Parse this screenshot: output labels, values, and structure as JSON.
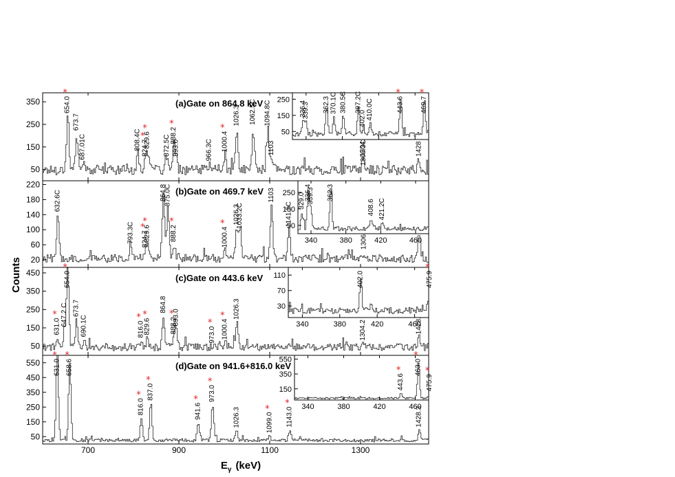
{
  "figure": {
    "ylabel": "Counts",
    "xlabel": "E",
    "xlabel_sub": "γ",
    "xlabel_unit": "(keV)",
    "star_symbol": "*",
    "star_color": "#e02020",
    "line_color": "#222222"
  },
  "chart_data": [
    {
      "type": "line",
      "panel": "a",
      "title": "(a)Gate on 864.8 keV",
      "xlim": [
        600,
        1450
      ],
      "ylim": [
        0,
        390
      ],
      "yticks": [
        50,
        150,
        250,
        350
      ],
      "xticks": [
        700,
        900,
        1100,
        1300
      ],
      "xtick_labels": [],
      "baseline": 48,
      "peaks": [
        {
          "x": 654.0,
          "y": 300,
          "label": "654.0",
          "star": true
        },
        {
          "x": 673.7,
          "y": 210,
          "label": "673.7",
          "star": false
        },
        {
          "x": 687.0,
          "y": 80,
          "label": "687.01C",
          "star": false
        },
        {
          "x": 808.4,
          "y": 120,
          "label": "808.4C",
          "star": false
        },
        {
          "x": 824.7,
          "y": 95,
          "label": "824.7",
          "star": true
        },
        {
          "x": 829.6,
          "y": 130,
          "label": "829.6",
          "star": true
        },
        {
          "x": 872.5,
          "y": 95,
          "label": "872.5C",
          "star": false
        },
        {
          "x": 888.2,
          "y": 150,
          "label": "888.2",
          "star": true
        },
        {
          "x": 893.0,
          "y": 95,
          "label": "893.0",
          "star": false
        },
        {
          "x": 966.3,
          "y": 75,
          "label": "966.3C",
          "star": false
        },
        {
          "x": 1000.4,
          "y": 115,
          "label": "1000.4",
          "star": true
        },
        {
          "x": 1026.3,
          "y": 230,
          "label": "1026.3",
          "star": false
        },
        {
          "x": 1062.5,
          "y": 235,
          "label": "1062.5C",
          "star": false
        },
        {
          "x": 1094.8,
          "y": 230,
          "label": "1094.8C",
          "star": false
        },
        {
          "x": 1103.0,
          "y": 100,
          "label": "1103",
          "star": false
        },
        {
          "x": 1304.2,
          "y": 95,
          "label": "1304.2",
          "star": false
        },
        {
          "x": 1306.3,
          "y": 55,
          "label": "1306.3C",
          "star": false
        },
        {
          "x": 1428.0,
          "y": 95,
          "label": "1428",
          "star": false
        }
      ],
      "inset": {
        "xlim": [
          325,
          475
        ],
        "ylim": [
          0,
          290
        ],
        "yticks": [
          50,
          150,
          250
        ],
        "xticks": [
          340,
          380,
          420,
          460
        ],
        "baseline": 35,
        "peaks": [
          {
            "x": 336.4,
            "y": 120,
            "label": "336.4",
            "star": false
          },
          {
            "x": 339.3,
            "y": 110,
            "label": "339.3",
            "star": false
          },
          {
            "x": 362.3,
            "y": 220,
            "label": "362.3",
            "star": false
          },
          {
            "x": 370.1,
            "y": 140,
            "label": "370.1C",
            "star": false
          },
          {
            "x": 380.5,
            "y": 160,
            "label": "380.5C",
            "star": false
          },
          {
            "x": 397.2,
            "y": 190,
            "label": "397.2C",
            "star": false
          },
          {
            "x": 402.0,
            "y": 60,
            "label": "402.0",
            "star": false
          },
          {
            "x": 410.0,
            "y": 100,
            "label": "410.0C",
            "star": false
          },
          {
            "x": 443.6,
            "y": 260,
            "label": "443.6",
            "star": true
          },
          {
            "x": 469.7,
            "y": 260,
            "label": "469.7",
            "star": true
          }
        ]
      }
    },
    {
      "type": "line",
      "panel": "b",
      "title": "(b)Gate on 469.7 keV",
      "xlim": [
        600,
        1450
      ],
      "ylim": [
        0,
        230
      ],
      "yticks": [
        20,
        60,
        100,
        140,
        180,
        220
      ],
      "xticks": [
        700,
        900,
        1100,
        1300
      ],
      "xtick_labels": [],
      "baseline": 24,
      "peaks": [
        {
          "x": 632.6,
          "y": 140,
          "label": "632.6C",
          "star": false
        },
        {
          "x": 793.3,
          "y": 55,
          "label": "793.3C",
          "star": false
        },
        {
          "x": 824.7,
          "y": 45,
          "label": "824.7",
          "star": true
        },
        {
          "x": 829.6,
          "y": 60,
          "label": "829.6",
          "star": true
        },
        {
          "x": 864.8,
          "y": 200,
          "label": "864.8",
          "star": false
        },
        {
          "x": 875.0,
          "y": 155,
          "label": "875.0C",
          "star": false
        },
        {
          "x": 888.2,
          "y": 60,
          "label": "888.2",
          "star": true
        },
        {
          "x": 1000.4,
          "y": 45,
          "label": "1000.4",
          "star": true
        },
        {
          "x": 1026.3,
          "y": 105,
          "label": "1026.3",
          "star": false
        },
        {
          "x": 1033.2,
          "y": 95,
          "label": "1033.2C",
          "star": false
        },
        {
          "x": 1103.0,
          "y": 165,
          "label": "1103",
          "star": false
        },
        {
          "x": 1141.5,
          "y": 100,
          "label": "1141.5C",
          "star": false
        },
        {
          "x": 1306.8,
          "y": 40,
          "label": "1306.8C",
          "star": false
        },
        {
          "x": 1428.0,
          "y": 95,
          "label": "1428",
          "star": false
        }
      ],
      "inset": {
        "xlim": [
          325,
          475
        ],
        "ylim": [
          0,
          320
        ],
        "yticks": [
          50,
          150,
          250
        ],
        "xticks": [
          340,
          380,
          420,
          460
        ],
        "xtick_labels": [
          340,
          380,
          420,
          460
        ],
        "baseline": 30,
        "peaks": [
          {
            "x": 329.0,
            "y": 130,
            "label": "329.0",
            "star": false
          },
          {
            "x": 336.4,
            "y": 250,
            "label": "336.4",
            "star": false
          },
          {
            "x": 339.3,
            "y": 160,
            "label": "339.3",
            "star": false
          },
          {
            "x": 362.3,
            "y": 280,
            "label": "362.3",
            "star": false
          },
          {
            "x": 408.6,
            "y": 90,
            "label": "408.6",
            "star": false
          },
          {
            "x": 421.2,
            "y": 65,
            "label": "421.2C",
            "star": false
          }
        ]
      }
    },
    {
      "type": "line",
      "panel": "c",
      "title": "(c)Gate on 443.6 keV",
      "xlim": [
        600,
        1450
      ],
      "ylim": [
        0,
        480
      ],
      "yticks": [
        50,
        150,
        250,
        350,
        450
      ],
      "xticks": [
        700,
        900,
        1100,
        1300
      ],
      "xtick_labels": [],
      "baseline": 45,
      "peaks": [
        {
          "x": 631.0,
          "y": 95,
          "label": "631.0",
          "star": true
        },
        {
          "x": 647.2,
          "y": 140,
          "label": "647.2 C",
          "star": false
        },
        {
          "x": 654.0,
          "y": 470,
          "label": "654.0",
          "star": true
        },
        {
          "x": 673.7,
          "y": 195,
          "label": "673.7",
          "star": false
        },
        {
          "x": 690.1,
          "y": 85,
          "label": "690.1C",
          "star": false
        },
        {
          "x": 816.0,
          "y": 80,
          "label": "816.0",
          "star": true
        },
        {
          "x": 829.6,
          "y": 95,
          "label": "829.6",
          "star": true
        },
        {
          "x": 864.8,
          "y": 215,
          "label": "864.8",
          "star": false
        },
        {
          "x": 888.2,
          "y": 100,
          "label": "888.2",
          "star": true
        },
        {
          "x": 893.0,
          "y": 145,
          "label": "893.0",
          "star": false
        },
        {
          "x": 973.0,
          "y": 50,
          "label": "973.0",
          "star": true
        },
        {
          "x": 1000.4,
          "y": 70,
          "label": "1000.4",
          "star": true
        },
        {
          "x": 1026.3,
          "y": 180,
          "label": "1026.3",
          "star": false
        },
        {
          "x": 1304.2,
          "y": 65,
          "label": "1304.2",
          "star": false
        },
        {
          "x": 1428.3,
          "y": 100,
          "label": "1428.3",
          "star": false
        }
      ],
      "inset": {
        "xlim": [
          325,
          475
        ],
        "ylim": [
          0,
          130
        ],
        "yticks": [
          30,
          70,
          110
        ],
        "xticks": [
          340,
          380,
          420,
          460
        ],
        "xtick_labels": [
          340,
          380,
          420,
          460
        ],
        "baseline": 18,
        "peaks": [
          {
            "x": 402.0,
            "y": 95,
            "label": "402.0",
            "star": false
          },
          {
            "x": 475.9,
            "y": 115,
            "label": "475.9",
            "star": true
          }
        ]
      }
    },
    {
      "type": "line",
      "panel": "d",
      "title": "(d)Gate on 941.6+816.0 keV",
      "xlim": [
        600,
        1450
      ],
      "ylim": [
        0,
        600
      ],
      "yticks": [
        50,
        150,
        250,
        350,
        450,
        550
      ],
      "xticks": [
        700,
        900,
        1100,
        1300
      ],
      "xtick_labels": [
        700,
        900,
        1100,
        1300
      ],
      "baseline": 25,
      "peaks": [
        {
          "x": 631.0,
          "y": 590,
          "label": "631.0",
          "star": true
        },
        {
          "x": 658.6,
          "y": 560,
          "label": "658.6",
          "star": true
        },
        {
          "x": 816.0,
          "y": 175,
          "label": "816.0",
          "star": true
        },
        {
          "x": 837.0,
          "y": 275,
          "label": "837.0",
          "star": true
        },
        {
          "x": 941.6,
          "y": 145,
          "label": "941.6",
          "star": true
        },
        {
          "x": 973.0,
          "y": 265,
          "label": "973.0",
          "star": true
        },
        {
          "x": 1026.3,
          "y": 90,
          "label": "1026.3",
          "star": false
        },
        {
          "x": 1099.0,
          "y": 55,
          "label": "1099.0",
          "star": true
        },
        {
          "x": 1143.0,
          "y": 95,
          "label": "1143.0",
          "star": true
        },
        {
          "x": 1428.3,
          "y": 95,
          "label": "1428.3",
          "star": false
        }
      ],
      "inset": {
        "xlim": [
          325,
          475
        ],
        "ylim": [
          0,
          600
        ],
        "yticks": [
          150,
          350,
          550
        ],
        "xticks": [
          340,
          380,
          420,
          460
        ],
        "xtick_labels": [
          340,
          380,
          420,
          460
        ],
        "baseline": 25,
        "peaks": [
          {
            "x": 443.6,
            "y": 90,
            "label": "443.6",
            "star": true
          },
          {
            "x": 463.0,
            "y": 520,
            "label": "463.0",
            "star": true
          },
          {
            "x": 475.9,
            "y": 80,
            "label": "475.9",
            "star": true
          }
        ]
      }
    }
  ]
}
